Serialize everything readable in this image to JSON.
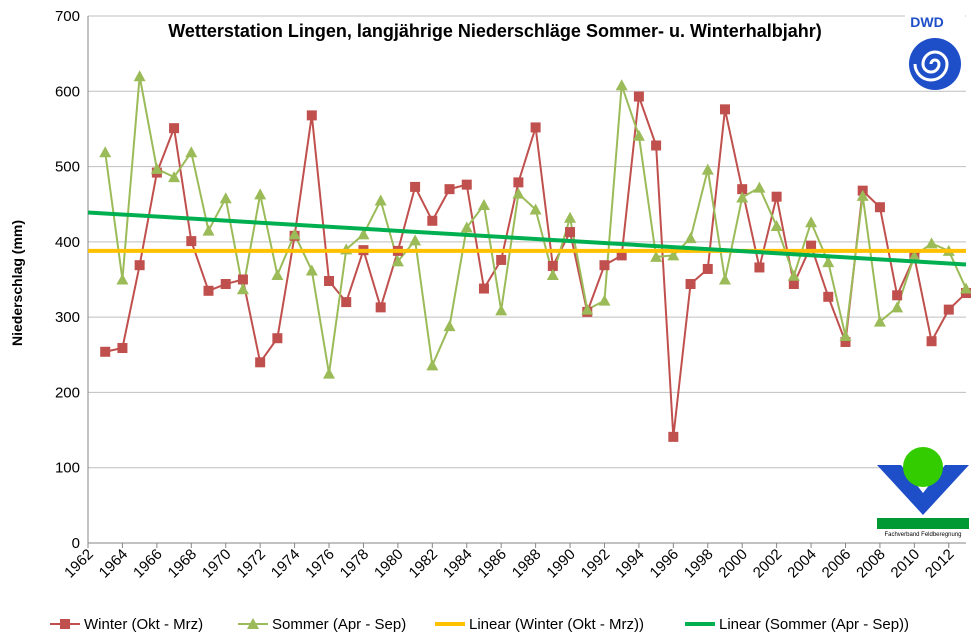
{
  "chart_data": {
    "type": "line",
    "title": "Wetterstation Lingen, langjährige Niederschläge Sommer- u. Winterhalbjahr)",
    "ylabel": "Niederschlag (mm)",
    "xlabel": "",
    "ylim": [
      0,
      700
    ],
    "yticks": [
      0,
      100,
      200,
      300,
      400,
      500,
      600,
      700
    ],
    "xlim": [
      1962,
      2013
    ],
    "xticks": [
      1962,
      1964,
      1966,
      1968,
      1970,
      1972,
      1974,
      1976,
      1978,
      1980,
      1982,
      1984,
      1986,
      1988,
      1990,
      1992,
      1994,
      1996,
      1998,
      2000,
      2002,
      2004,
      2006,
      2008,
      2010,
      2012
    ],
    "grid": true,
    "legend_position": "bottom",
    "x": [
      1963,
      1964,
      1965,
      1966,
      1967,
      1968,
      1969,
      1970,
      1971,
      1972,
      1973,
      1974,
      1975,
      1976,
      1977,
      1978,
      1979,
      1980,
      1981,
      1982,
      1983,
      1984,
      1985,
      1986,
      1987,
      1988,
      1989,
      1990,
      1991,
      1992,
      1993,
      1994,
      1995,
      1996,
      1997,
      1998,
      1999,
      2000,
      2001,
      2002,
      2003,
      2004,
      2005,
      2006,
      2007,
      2008,
      2009,
      2010,
      2011,
      2012,
      2013
    ],
    "series": [
      {
        "name": "Winter (Okt - Mrz)",
        "color": "#c0504d",
        "marker": "square",
        "values": [
          254,
          259,
          369,
          492,
          551,
          401,
          335,
          344,
          350,
          240,
          272,
          408,
          568,
          348,
          320,
          389,
          313,
          388,
          473,
          428,
          470,
          476,
          338,
          376,
          479,
          552,
          368,
          413,
          307,
          369,
          382,
          593,
          528,
          141,
          344,
          364,
          576,
          470,
          366,
          460,
          344,
          395,
          327,
          267,
          468,
          446,
          329,
          380,
          268,
          310,
          332
        ]
      },
      {
        "name": "Sommer (Apr - Sep)",
        "color": "#9bbb59",
        "marker": "triangle",
        "values": [
          519,
          350,
          620,
          497,
          486,
          519,
          415,
          458,
          337,
          463,
          356,
          410,
          362,
          225,
          390,
          410,
          455,
          374,
          402,
          236,
          288,
          419,
          449,
          309,
          464,
          443,
          356,
          432,
          310,
          322,
          608,
          541,
          380,
          382,
          405,
          496,
          350,
          459,
          472,
          421,
          355,
          426,
          373,
          275,
          461,
          294,
          313,
          381,
          398,
          388,
          338
        ]
      },
      {
        "name": "Linear (Winter (Okt - Mrz))",
        "color": "#ffc000",
        "type": "trend",
        "x": [
          1962,
          2013
        ],
        "values": [
          388,
          388
        ]
      },
      {
        "name": "Linear (Sommer (Apr - Sep))",
        "color": "#00b050",
        "type": "trend",
        "x": [
          1962,
          2013
        ],
        "values": [
          439,
          370
        ]
      }
    ]
  },
  "logos": {
    "dwd_text": "DWD",
    "fachverband_text": "Fachverband Feldberegnung"
  }
}
